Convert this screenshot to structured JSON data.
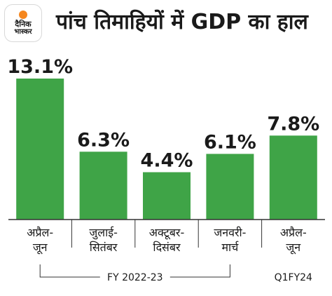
{
  "logo": {
    "line1": "दैनिक",
    "line2": "भास्कर"
  },
  "colors": {
    "bar": "#3fa447",
    "axis": "#333333",
    "text": "#1a1a1a",
    "logo_accent": "#f5871f"
  },
  "chart_data": {
    "type": "bar",
    "title": "पांच तिमाहियों में GDP का हाल",
    "categories": [
      [
        "अप्रैल-",
        "जून"
      ],
      [
        "जुलाई-",
        "सितंबर"
      ],
      [
        "अक्टूबर-",
        "दिसंबर"
      ],
      [
        "जनवरी-",
        "मार्च"
      ],
      [
        "अप्रैल-",
        "जून"
      ]
    ],
    "values": [
      13.1,
      6.3,
      4.4,
      6.1,
      7.8
    ],
    "value_labels": [
      "13.1%",
      "6.3%",
      "4.4%",
      "6.1%",
      "7.8%"
    ],
    "ylim": [
      0,
      13.1
    ],
    "grid": false,
    "groups": [
      {
        "label": "FY 2022-23",
        "from": 0,
        "to": 3
      },
      {
        "label": "Q1FY24",
        "from": 4,
        "to": 4
      }
    ]
  }
}
